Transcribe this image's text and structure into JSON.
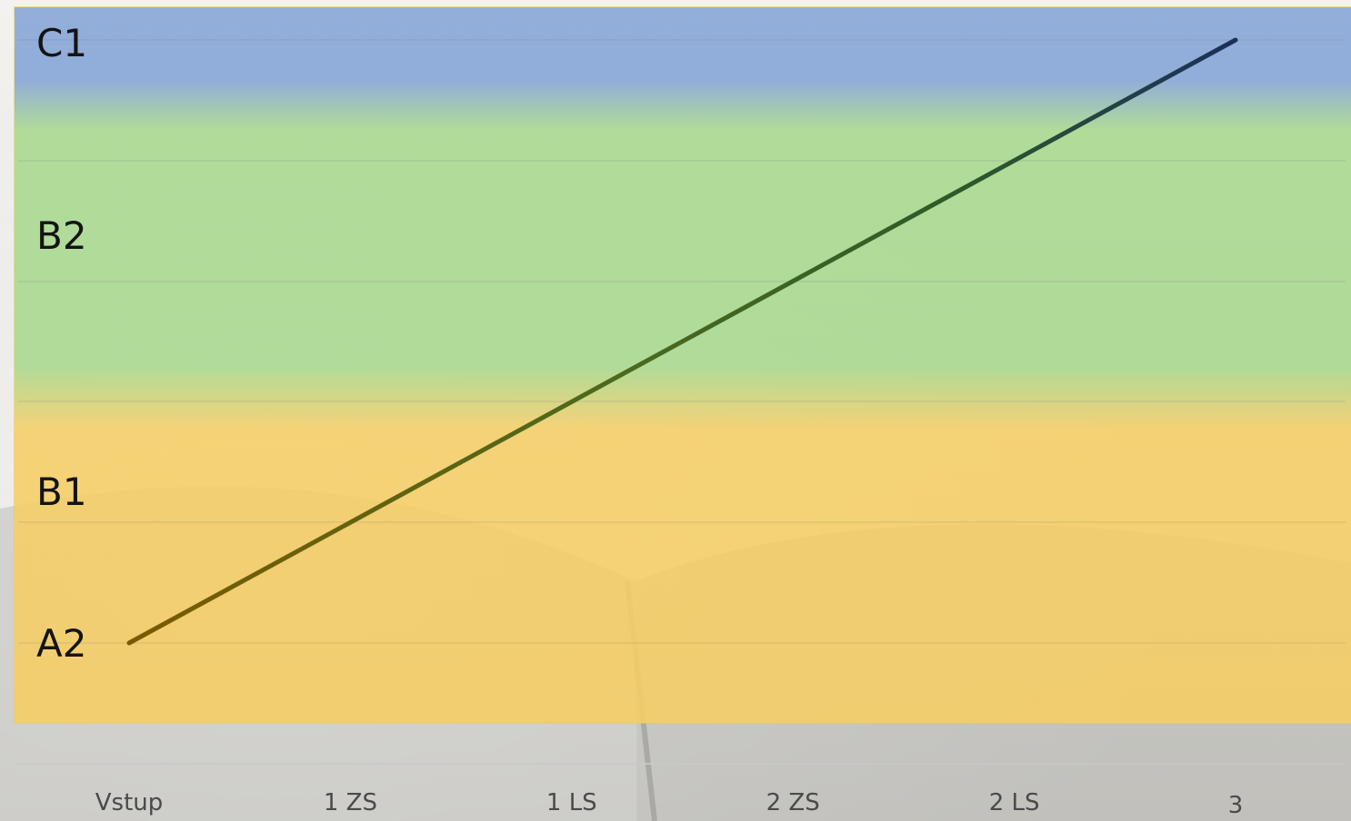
{
  "chart_data": {
    "type": "line",
    "title": "",
    "xlabel": "",
    "ylabel": "",
    "categories": [
      "Vstup",
      "1 ZS",
      "1 LS",
      "2 ZS",
      "2 LS",
      "3"
    ],
    "y_levels": [
      "A2",
      "B1",
      "B2",
      "C1"
    ],
    "series": [
      {
        "x": [
          "Vstup",
          "3"
        ],
        "values": [
          "A2",
          "C1"
        ]
      }
    ],
    "bands": [
      {
        "level_from": "A2",
        "level_to": "B1",
        "color": "#F6CE64"
      },
      {
        "level_from": "B2",
        "level_to": "B2",
        "color": "#A6D88C"
      },
      {
        "level_from": "C1",
        "level_to": "C1",
        "color": "#84A4D6"
      }
    ],
    "line_gradient": [
      "#7A5A00",
      "#3F6B24",
      "#1A2F5A"
    ],
    "grid": true,
    "legend": "none"
  }
}
